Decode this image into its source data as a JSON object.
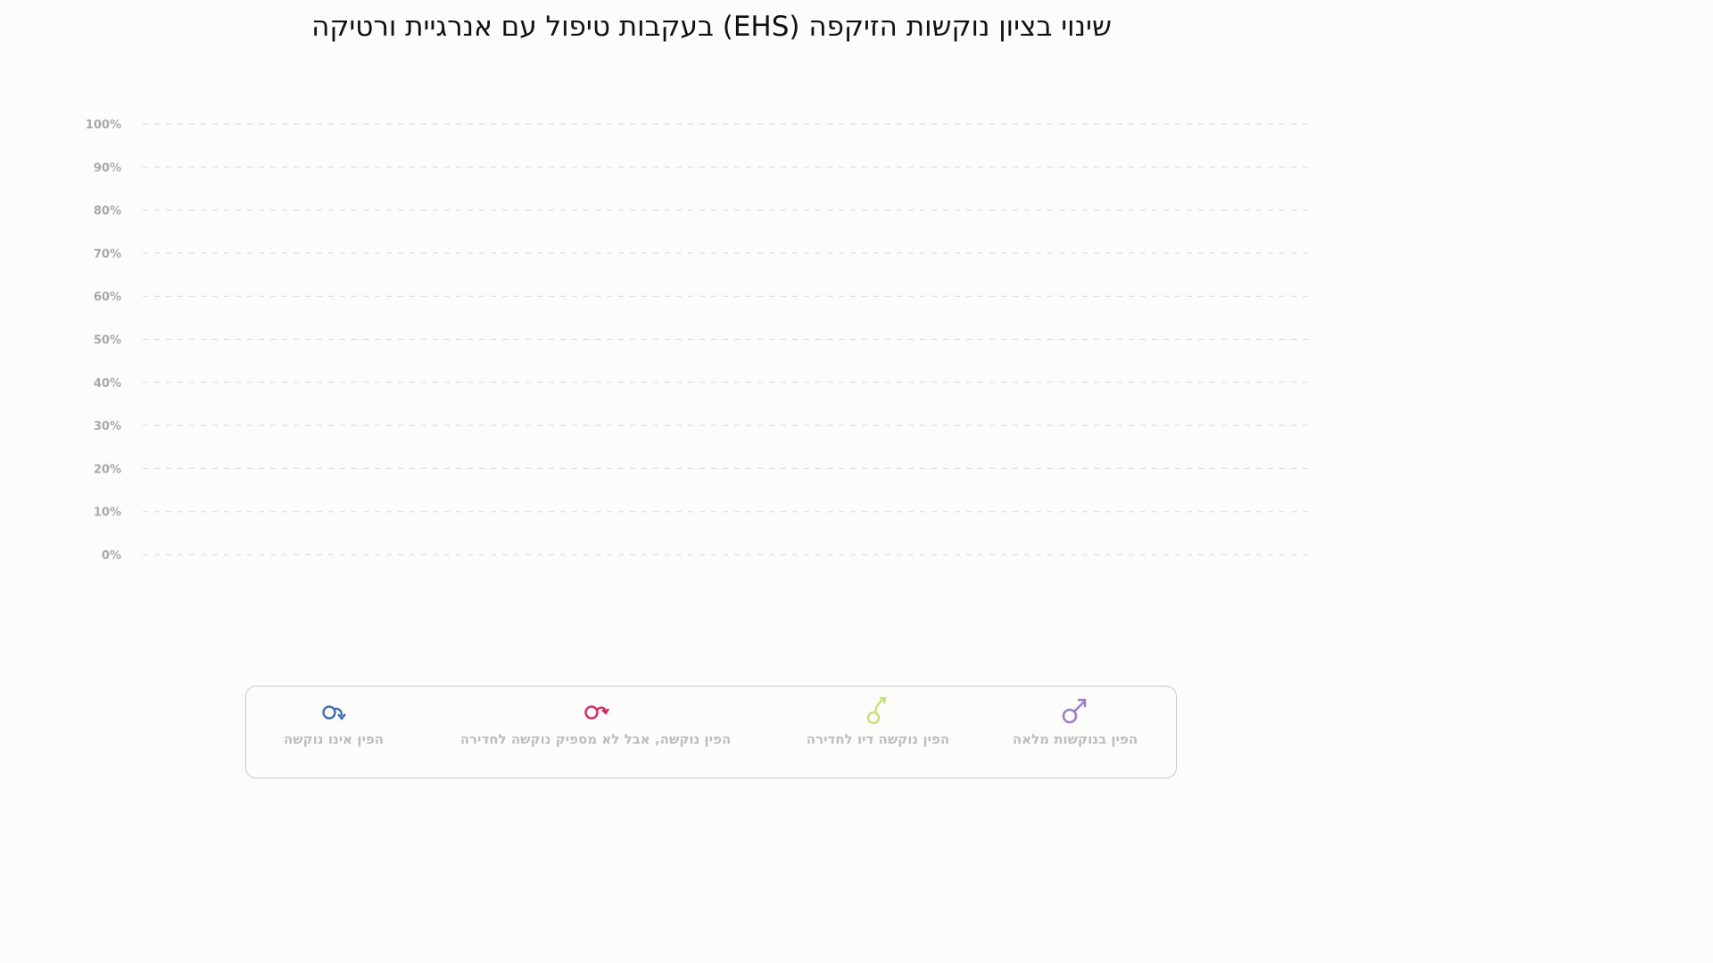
{
  "chart_data": {
    "type": "bar",
    "title": "שינוי בציון נוקשות הזיקפה (EHS) בעקבות טיפול עם אנרגיית ורטיקה",
    "xlabel": "",
    "ylabel": "",
    "ylim": [
      0,
      100
    ],
    "yticks": [
      "0%",
      "10%",
      "20%",
      "30%",
      "40%",
      "50%",
      "60%",
      "70%",
      "80%",
      "90%",
      "100%"
    ],
    "grid": true,
    "categories": [],
    "series": [],
    "legend_position": "bottom"
  },
  "legend": {
    "items": [
      {
        "label": "הפין בנוקשות מלאה",
        "icon": "full-erection-icon",
        "color": "#9b80c4"
      },
      {
        "label": "הפין נוקשה דיו לחדירה",
        "icon": "firm-enough-icon",
        "color": "#c8e07a"
      },
      {
        "label": "הפין נוקשה, אבל לא מספיק נוקשה לחדירה",
        "icon": "not-firm-enough-icon",
        "color": "#cf2d67"
      },
      {
        "label": "הפין אינו נוקשה",
        "icon": "not-firm-icon",
        "color": "#3f6fb0"
      }
    ]
  }
}
